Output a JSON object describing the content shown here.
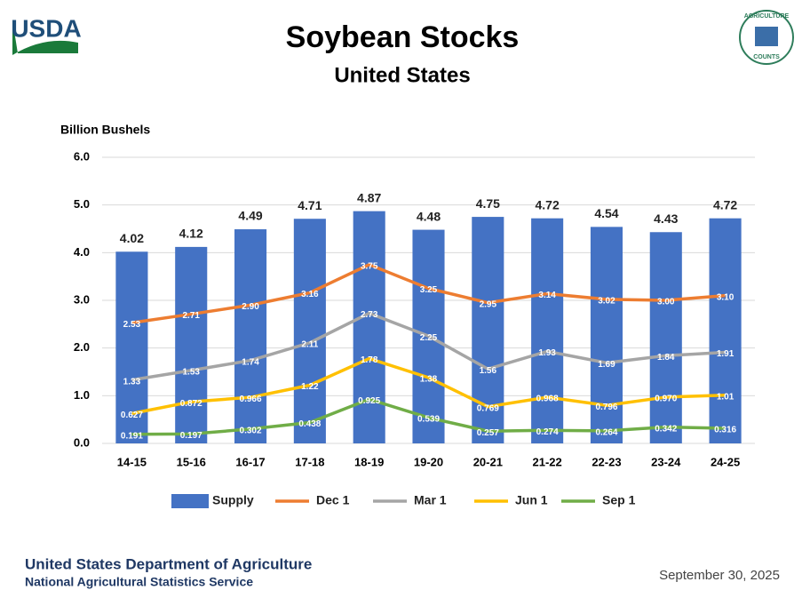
{
  "header": {
    "logo": "USDA",
    "badge_top": "AGRICULTURE",
    "badge_bottom": "COUNTS"
  },
  "footer": {
    "department": "United States Department of Agriculture",
    "service": "National Agricultural Statistics Service",
    "date": "September 30, 2025"
  },
  "chart_data": {
    "type": "bar",
    "title": "Soybean Stocks",
    "subtitle": "United States",
    "y_label": "Billion Bushels",
    "categories": [
      "14-15",
      "15-16",
      "16-17",
      "17-18",
      "18-19",
      "19-20",
      "20-21",
      "21-22",
      "22-23",
      "23-24",
      "24-25"
    ],
    "ylim": [
      0,
      6
    ],
    "yticks": [
      {
        "value": 0,
        "label": "0.0"
      },
      {
        "value": 1,
        "label": "1.0"
      },
      {
        "value": 2,
        "label": "2.0"
      },
      {
        "value": 3,
        "label": "3.0"
      },
      {
        "value": 4,
        "label": "4.0"
      },
      {
        "value": 5,
        "label": "5.0"
      },
      {
        "value": 6,
        "label": "6.0"
      }
    ],
    "grid": true,
    "legend": "bottom",
    "series": [
      {
        "name": "Supply",
        "type": "bar",
        "color": "#4472c4",
        "values": [
          4.02,
          4.12,
          4.49,
          4.71,
          4.87,
          4.48,
          4.75,
          4.72,
          4.54,
          4.43,
          4.72
        ],
        "value_labels": [
          "4.02",
          "4.12",
          "4.49",
          "4.71",
          "4.87",
          "4.48",
          "4.75",
          "4.72",
          "4.54",
          "4.43",
          "4.72"
        ]
      },
      {
        "name": "Dec 1",
        "type": "line",
        "color": "#ed7d31",
        "values": [
          2.53,
          2.71,
          2.9,
          3.16,
          3.75,
          3.25,
          2.95,
          3.14,
          3.02,
          3.0,
          3.1
        ],
        "value_labels": [
          "2.53",
          "2.71",
          "2.90",
          "3.16",
          "3.75",
          "3.25",
          "2.95",
          "3.14",
          "3.02",
          "3.00",
          "3.10"
        ]
      },
      {
        "name": "Mar 1",
        "type": "line",
        "color": "#a5a5a5",
        "values": [
          1.33,
          1.53,
          1.74,
          2.11,
          2.73,
          2.25,
          1.56,
          1.93,
          1.69,
          1.84,
          1.91
        ],
        "value_labels": [
          "1.33",
          "1.53",
          "1.74",
          "2.11",
          "2.73",
          "2.25",
          "1.56",
          "1.93",
          "1.69",
          "1.84",
          "1.91"
        ]
      },
      {
        "name": "Jun 1",
        "type": "line",
        "color": "#ffc000",
        "values": [
          0.627,
          0.872,
          0.966,
          1.22,
          1.78,
          1.38,
          0.769,
          0.968,
          0.796,
          0.97,
          1.01
        ],
        "value_labels": [
          "0.627",
          "0.872",
          "0.966",
          "1.22",
          "1.78",
          "1.38",
          "0.769",
          "0.968",
          "0.796",
          "0.970",
          "1.01"
        ]
      },
      {
        "name": "Sep 1",
        "type": "line",
        "color": "#70ad47",
        "values": [
          0.191,
          0.197,
          0.302,
          0.438,
          0.925,
          0.539,
          0.257,
          0.274,
          0.264,
          0.342,
          0.316
        ],
        "value_labels": [
          "0.191",
          "0.197",
          "0.302",
          "0.438",
          "0.925",
          "0.539",
          "0.257",
          "0.274",
          "0.264",
          "0.342",
          "0.316"
        ]
      }
    ]
  }
}
